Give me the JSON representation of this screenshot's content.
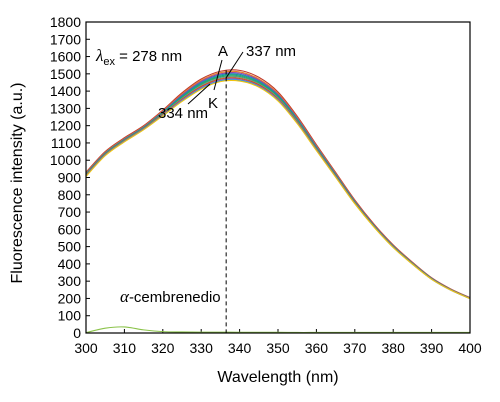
{
  "chart_data": {
    "type": "line",
    "xlabel": "Wavelength (nm)",
    "ylabel": "Fluorescence intensity (a.u.)",
    "xlim": [
      300,
      400
    ],
    "ylim": [
      0,
      1800
    ],
    "xticks": [
      300,
      310,
      320,
      330,
      340,
      350,
      360,
      370,
      380,
      390,
      400
    ],
    "yticks": [
      0,
      100,
      200,
      300,
      400,
      500,
      600,
      700,
      800,
      900,
      1000,
      1100,
      1200,
      1300,
      1400,
      1500,
      1600,
      1700,
      1800
    ],
    "x": [
      300,
      305,
      310,
      315,
      320,
      325,
      330,
      335,
      340,
      345,
      350,
      355,
      360,
      365,
      370,
      375,
      380,
      385,
      390,
      395,
      400
    ],
    "series": [
      {
        "name": "A",
        "color": "#c0392b",
        "values": [
          930,
          1050,
          1130,
          1200,
          1290,
          1390,
          1470,
          1515,
          1520,
          1480,
          1395,
          1255,
          1090,
          930,
          770,
          630,
          510,
          410,
          320,
          255,
          205
        ]
      },
      {
        "name": "",
        "color": "#e67e22",
        "values": [
          925,
          1045,
          1125,
          1195,
          1285,
          1382,
          1462,
          1507,
          1511,
          1470,
          1386,
          1248,
          1084,
          925,
          766,
          626,
          507,
          407,
          318,
          253,
          203
        ]
      },
      {
        "name": "",
        "color": "#8e44ad",
        "values": [
          922,
          1042,
          1122,
          1192,
          1281,
          1377,
          1456,
          1500,
          1504,
          1464,
          1380,
          1243,
          1080,
          921,
          763,
          624,
          505,
          405,
          317,
          252,
          202
        ]
      },
      {
        "name": "",
        "color": "#2980b9",
        "values": [
          920,
          1040,
          1120,
          1190,
          1278,
          1372,
          1450,
          1494,
          1497,
          1458,
          1375,
          1238,
          1076,
          918,
          760,
          622,
          503,
          404,
          316,
          251,
          202
        ]
      },
      {
        "name": "",
        "color": "#16a085",
        "values": [
          918,
          1038,
          1118,
          1188,
          1275,
          1367,
          1444,
          1488,
          1491,
          1452,
          1370,
          1234,
          1072,
          915,
          758,
          620,
          502,
          403,
          315,
          250,
          201
        ]
      },
      {
        "name": "",
        "color": "#27ae60",
        "values": [
          916,
          1036,
          1116,
          1186,
          1272,
          1362,
          1438,
          1482,
          1485,
          1446,
          1365,
          1230,
          1069,
          912,
          756,
          618,
          500,
          402,
          314,
          250,
          201
        ]
      },
      {
        "name": "",
        "color": "#7f8c8d",
        "values": [
          914,
          1034,
          1114,
          1184,
          1269,
          1357,
          1432,
          1476,
          1479,
          1441,
          1360,
          1226,
          1066,
          910,
          754,
          617,
          499,
          401,
          313,
          249,
          200
        ]
      },
      {
        "name": "",
        "color": "#d35400",
        "values": [
          912,
          1032,
          1112,
          1182,
          1266,
          1352,
          1426,
          1470,
          1473,
          1436,
          1355,
          1222,
          1063,
          908,
          752,
          616,
          498,
          400,
          312,
          249,
          200
        ]
      },
      {
        "name": "",
        "color": "#9b59b6",
        "values": [
          910,
          1030,
          1110,
          1180,
          1263,
          1348,
          1421,
          1465,
          1468,
          1431,
          1351,
          1218,
          1060,
          906,
          750,
          615,
          497,
          399,
          312,
          248,
          200
        ]
      },
      {
        "name": "",
        "color": "#3498db",
        "values": [
          908,
          1028,
          1108,
          1178,
          1260,
          1344,
          1416,
          1460,
          1463,
          1427,
          1347,
          1215,
          1058,
          904,
          749,
          614,
          496,
          399,
          311,
          248,
          199
        ]
      },
      {
        "name": "K",
        "color": "#f1c40f",
        "values": [
          906,
          1026,
          1106,
          1176,
          1257,
          1340,
          1411,
          1455,
          1458,
          1423,
          1343,
          1212,
          1056,
          902,
          748,
          613,
          495,
          398,
          311,
          248,
          199
        ]
      },
      {
        "name": "α-cembrenedio",
        "color": "#8bc34a",
        "values": [
          2,
          28,
          35,
          18,
          8,
          6,
          5,
          5,
          4,
          4,
          4,
          3,
          3,
          3,
          3,
          3,
          3,
          3,
          3,
          3,
          3
        ]
      }
    ],
    "reference_line": {
      "x": 336.5,
      "style": "dashed"
    },
    "annotations": {
      "excitation_symbol": "λ",
      "excitation_subscript": "ex",
      "excitation_value": " = 278 nm",
      "label_a": "A",
      "label_k": "K",
      "peak_a": "337 nm",
      "peak_k": "334 nm",
      "compound_symbol": "α",
      "compound_rest": "-cembrenedio"
    },
    "grid": false,
    "legend": "none"
  }
}
